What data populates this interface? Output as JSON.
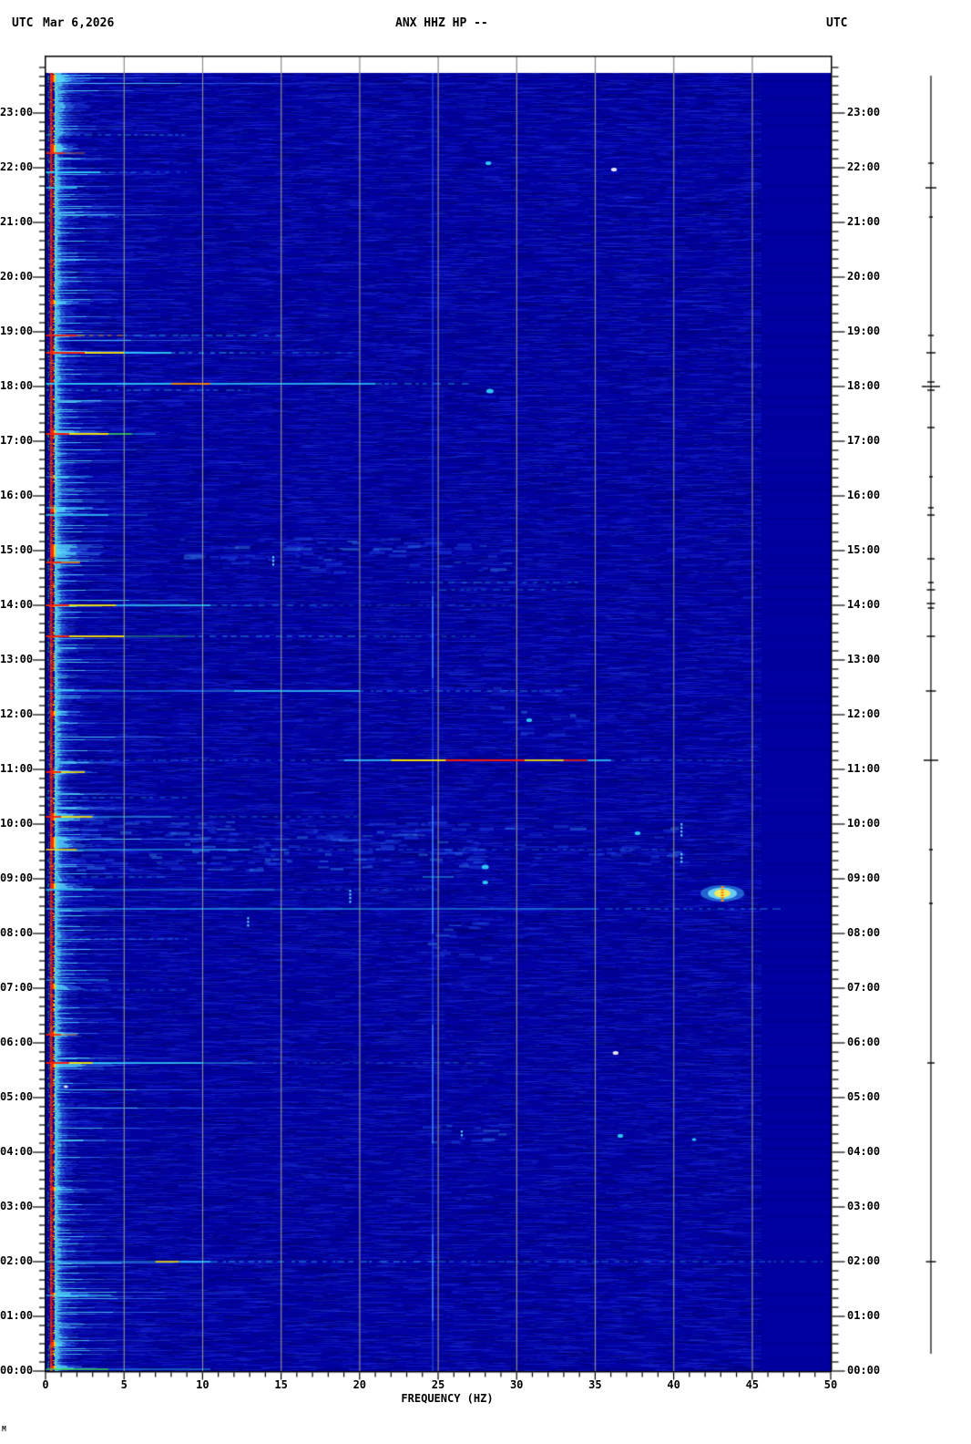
{
  "header": {
    "timezone_left": "UTC",
    "date": "Mar 6,2026",
    "timezone_right": "UTC"
  },
  "corner_mark": "M",
  "chart_data": {
    "type": "heatmap",
    "title": "ANX HHZ HP --",
    "subtitle": "24-hour seismic spectrogram, one row per time step, jet colormap on dark blue background",
    "xlabel": "FREQUENCY (HZ)",
    "x_range_hz": [
      0,
      50
    ],
    "x_tick_labels": [
      "0",
      "5",
      "10",
      "15",
      "20",
      "25",
      "30",
      "35",
      "40",
      "45",
      "50"
    ],
    "x_minor_step_hz": 1,
    "y_axis": "time UTC, 00:00 at bottom to 23:44 at top",
    "y_hour_labels": [
      "23:00",
      "22:00",
      "21:00",
      "20:00",
      "19:00",
      "18:00",
      "17:00",
      "16:00",
      "15:00",
      "14:00",
      "13:00",
      "12:00",
      "11:00",
      "10:00",
      "09:00",
      "08:00",
      "07:00",
      "06:00",
      "05:00",
      "04:00",
      "03:00",
      "02:00",
      "01:00",
      "00:00"
    ],
    "y_minor_step_min": 10,
    "grid": true,
    "grid_color": "#8c8c8c",
    "base_color": "#0202a8",
    "flat_region_above_hz": 45.6,
    "palette": {
      "red": "#ff1e00",
      "orange": "#ff9100",
      "yellow": "#ffe900",
      "green": "#3dde54",
      "cyan": "#35d8ff",
      "white": "#ffffff"
    },
    "persistent_tones_hz": [
      24.65
    ],
    "tone_bright_segments": [
      "14:10-12:40",
      "10:20-8:00",
      "6:20-4:10",
      "2:30-0:55"
    ],
    "events": [
      {
        "t": "22:36",
        "seg": [
          [
            0,
            9,
            "cyan",
            0.4,
            1
          ]
        ]
      },
      {
        "t": "22:16",
        "seg": [
          [
            0,
            1.2,
            "red",
            0.8
          ],
          [
            1.2,
            2.5,
            "orange",
            0.5
          ]
        ]
      },
      {
        "t": "21:55",
        "seg": [
          [
            0,
            3.5,
            "cyan",
            0.85
          ],
          [
            3.5,
            9,
            "cyan",
            0.3,
            1
          ]
        ]
      },
      {
        "t": "21:38",
        "seg": [
          [
            0,
            2,
            "cyan",
            0.75
          ]
        ]
      },
      {
        "t": "21:06",
        "seg": [
          [
            0,
            5,
            "cyan",
            0.3,
            1
          ]
        ]
      },
      {
        "t": "18:56",
        "seg": [
          [
            0,
            2,
            "red",
            0.85
          ],
          [
            2,
            5,
            "orange",
            0.6,
            1
          ],
          [
            5,
            15,
            "cyan",
            0.45,
            1
          ]
        ]
      },
      {
        "t": "18:37",
        "seg": [
          [
            0,
            2.5,
            "red",
            0.95
          ],
          [
            2.5,
            5,
            "yellow",
            0.9
          ],
          [
            5,
            8,
            "cyan",
            0.85
          ],
          [
            8,
            12.5,
            "cyan",
            0.55,
            1
          ],
          [
            12.5,
            20,
            "cyan",
            0.3,
            1
          ]
        ]
      },
      {
        "t": "18:03",
        "seg": [
          [
            0,
            8,
            "cyan",
            0.85
          ],
          [
            8,
            10.5,
            "orange",
            0.9
          ],
          [
            10.5,
            21,
            "cyan",
            0.75
          ],
          [
            21,
            27,
            "cyan",
            0.45,
            1
          ]
        ]
      },
      {
        "t": "17:56",
        "seg": [
          [
            0,
            13,
            "cyan",
            0.4,
            1
          ]
        ]
      },
      {
        "t": "17:08",
        "seg": [
          [
            0,
            1.5,
            "red",
            0.95
          ],
          [
            1.5,
            4,
            "yellow",
            0.95
          ],
          [
            4,
            5.5,
            "green",
            0.75
          ],
          [
            5.5,
            7,
            "cyan",
            0.45
          ]
        ]
      },
      {
        "t": "16:21",
        "seg": [
          [
            0,
            3,
            "cyan",
            0.5
          ]
        ]
      },
      {
        "t": "15:47",
        "seg": [
          [
            0,
            3,
            "cyan",
            0.65
          ]
        ]
      },
      {
        "t": "15:39",
        "seg": [
          [
            0,
            4,
            "cyan",
            0.75
          ],
          [
            4,
            6.5,
            "cyan",
            0.35
          ]
        ]
      },
      {
        "t": "14:47",
        "seg": [
          [
            0,
            1,
            "red",
            0.9
          ],
          [
            1,
            2.2,
            "orange",
            0.75
          ]
        ]
      },
      {
        "t": "14:25",
        "seg": [
          [
            23,
            34,
            "cyan",
            0.35,
            1
          ]
        ]
      },
      {
        "t": "14:17",
        "seg": [
          [
            25,
            33,
            "cyan",
            0.3,
            1
          ]
        ]
      },
      {
        "t": "14:00",
        "seg": [
          [
            0,
            1.5,
            "red",
            0.95
          ],
          [
            1.5,
            4.5,
            "yellow",
            0.9
          ],
          [
            4.5,
            10.5,
            "cyan",
            0.75
          ],
          [
            10.5,
            18,
            "cyan",
            0.4,
            1
          ],
          [
            18,
            30,
            "cyan",
            0.22,
            1
          ]
        ]
      },
      {
        "t": "13:26",
        "seg": [
          [
            0,
            1.5,
            "red",
            0.95
          ],
          [
            1.5,
            5,
            "yellow",
            0.9
          ],
          [
            5,
            9,
            "green",
            0.55
          ],
          [
            9,
            20,
            "cyan",
            0.45,
            1
          ],
          [
            20,
            27.5,
            "cyan",
            0.3,
            1
          ]
        ]
      },
      {
        "t": "12:26",
        "seg": [
          [
            0,
            12,
            "cyan",
            0.55
          ],
          [
            12,
            20,
            "cyan",
            0.75
          ],
          [
            20,
            33,
            "cyan",
            0.4,
            1
          ]
        ]
      },
      {
        "t": "11:10",
        "seg": [
          [
            0,
            19,
            "cyan",
            0.3,
            1
          ],
          [
            19,
            22,
            "cyan",
            0.75
          ],
          [
            22,
            25.5,
            "yellow",
            0.95
          ],
          [
            25.5,
            30.5,
            "red",
            0.95
          ],
          [
            30.5,
            33,
            "yellow",
            0.85
          ],
          [
            33,
            34.5,
            "red",
            0.8
          ],
          [
            34.5,
            36,
            "cyan",
            0.75
          ],
          [
            36,
            45,
            "cyan",
            0.25,
            1
          ]
        ]
      },
      {
        "t": "10:57",
        "seg": [
          [
            0,
            1,
            "red",
            0.9
          ],
          [
            1,
            2.5,
            "yellow",
            0.8
          ]
        ]
      },
      {
        "t": "10:29",
        "seg": [
          [
            0,
            9,
            "cyan",
            0.35,
            1
          ]
        ]
      },
      {
        "t": "10:08",
        "seg": [
          [
            0,
            1,
            "red",
            0.9
          ],
          [
            1,
            3,
            "yellow",
            0.85
          ],
          [
            3,
            8,
            "cyan",
            0.65
          ],
          [
            8,
            20,
            "cyan",
            0.3,
            1
          ]
        ]
      },
      {
        "t": "9:32",
        "seg": [
          [
            0,
            2,
            "yellow",
            0.75
          ],
          [
            2,
            13,
            "cyan",
            0.65
          ],
          [
            13,
            40,
            "cyan",
            0.25,
            1
          ]
        ]
      },
      {
        "t": "9:02",
        "seg": [
          [
            0,
            8,
            "cyan",
            0.35,
            1
          ],
          [
            24,
            26,
            "cyan",
            0.55
          ]
        ]
      },
      {
        "t": "8:48",
        "seg": [
          [
            0,
            3,
            "cyan",
            0.75
          ],
          [
            3,
            14.6,
            "cyan",
            0.55
          ],
          [
            14.6,
            25,
            "cyan",
            0.25,
            1
          ]
        ]
      },
      {
        "t": "8:27",
        "seg": [
          [
            0,
            20,
            "cyan",
            0.7
          ],
          [
            20,
            35,
            "cyan",
            0.55
          ],
          [
            35,
            47,
            "cyan",
            0.4,
            1
          ]
        ]
      },
      {
        "t": "7:54",
        "seg": [
          [
            0,
            9,
            "cyan",
            0.3,
            1
          ]
        ]
      },
      {
        "t": "7:09",
        "seg": [
          [
            0,
            4,
            "cyan",
            0.55
          ]
        ]
      },
      {
        "t": "6:58",
        "seg": [
          [
            0,
            9,
            "cyan",
            0.25,
            1
          ]
        ]
      },
      {
        "t": "6:09",
        "seg": [
          [
            0,
            1,
            "red",
            0.85
          ],
          [
            1,
            2,
            "orange",
            0.6
          ]
        ]
      },
      {
        "t": "5:38",
        "seg": [
          [
            0,
            1.5,
            "red",
            0.95
          ],
          [
            1.5,
            3,
            "yellow",
            0.9
          ],
          [
            3,
            10,
            "cyan",
            0.75
          ],
          [
            10,
            13.2,
            "cyan",
            0.5
          ],
          [
            13.2,
            28,
            "cyan",
            0.25,
            1
          ]
        ]
      },
      {
        "t": "2:00",
        "seg": [
          [
            0,
            7,
            "cyan",
            0.55
          ],
          [
            7,
            8.5,
            "yellow",
            0.8
          ],
          [
            8.5,
            10.5,
            "cyan",
            0.75
          ],
          [
            10.5,
            25,
            "cyan",
            0.5,
            1
          ],
          [
            25,
            49.5,
            "cyan",
            0.35,
            1
          ]
        ]
      },
      {
        "t": "1:23",
        "seg": [
          [
            0,
            4.2,
            "cyan",
            0.7
          ]
        ]
      },
      {
        "t": "0:02",
        "seg": [
          [
            0,
            4,
            "green",
            0.75
          ],
          [
            4,
            10.5,
            "cyan",
            0.55
          ]
        ]
      }
    ],
    "spots": [
      {
        "t": "22:05",
        "f": 28.2,
        "r": 2,
        "c": "cyan"
      },
      {
        "t": "21:58",
        "f": 36.2,
        "r": 2,
        "c": "white"
      },
      {
        "t": "17:55",
        "f": 28.3,
        "r": 2.5,
        "c": "cyan"
      },
      {
        "t": "11:54",
        "f": 30.8,
        "r": 2,
        "c": "cyan"
      },
      {
        "t": "9:50",
        "f": 37.7,
        "r": 2,
        "c": "cyan"
      },
      {
        "t": "9:13",
        "f": 28,
        "r": 2.5,
        "c": "cyan"
      },
      {
        "t": "8:56",
        "f": 28,
        "r": 2,
        "c": "cyan"
      },
      {
        "t": "5:49",
        "f": 36.3,
        "r": 2,
        "c": "white"
      },
      {
        "t": "5:12",
        "f": 1.3,
        "r": 1.5,
        "c": "white"
      },
      {
        "t": "4:18",
        "f": 36.6,
        "r": 2,
        "c": "cyan"
      },
      {
        "t": "4:14",
        "f": 41.3,
        "r": 1.5,
        "c": "cyan"
      }
    ],
    "vdashes": [
      {
        "t": "14:49",
        "f": 14.5,
        "len": 10
      },
      {
        "t": "9:54",
        "f": 40.5,
        "len": 14
      },
      {
        "t": "9:23",
        "f": 40.5,
        "len": 10
      },
      {
        "t": "8:40",
        "f": 19.4,
        "len": 16
      },
      {
        "t": "8:12",
        "f": 12.9,
        "len": 12
      },
      {
        "t": "4:20",
        "f": 26.5,
        "len": 8
      }
    ],
    "blob": {
      "t": "8:44",
      "f": 43.1,
      "note": "bright localized burst, red core, yellow ring, cyan halo"
    },
    "mottle_bands": [
      {
        "t0": "15:15",
        "t1": "14:38",
        "f0": 8,
        "f1": 30,
        "n": 70
      },
      {
        "t0": "12:40",
        "t1": "11:35",
        "f0": 28,
        "f1": 34,
        "n": 14
      },
      {
        "t0": "10:05",
        "t1": "9:10",
        "f0": 1,
        "f1": 28,
        "n": 170
      },
      {
        "t0": "10:00",
        "t1": "9:15",
        "f0": 29,
        "f1": 40,
        "n": 25
      },
      {
        "t0": "8:20",
        "t1": "7:30",
        "f0": 24,
        "f1": 28,
        "n": 14
      },
      {
        "t0": "4:45",
        "t1": "4:05",
        "f0": 24,
        "f1": 29,
        "n": 12
      }
    ],
    "left_bursts": [
      {
        "t": "23:38",
        "rows": 8,
        "len": 25
      },
      {
        "t": "22:20",
        "rows": 10,
        "len": 18
      },
      {
        "t": "19:32",
        "rows": 4,
        "len": 30
      },
      {
        "t": "18:38",
        "rows": 3,
        "len": 60
      },
      {
        "t": "17:10",
        "rows": 4,
        "len": 40
      },
      {
        "t": "16:21",
        "rows": 3,
        "len": 25
      },
      {
        "t": "15:45",
        "rows": 6,
        "len": 30
      },
      {
        "t": "15:00",
        "rows": 14,
        "len": 35
      },
      {
        "t": "14:00",
        "rows": 3,
        "len": 45
      },
      {
        "t": "12:02",
        "rows": 5,
        "len": 20
      },
      {
        "t": "10:57",
        "rows": 4,
        "len": 30
      },
      {
        "t": "10:08",
        "rows": 8,
        "len": 40
      },
      {
        "t": "9:40",
        "rows": 12,
        "len": 30
      },
      {
        "t": "8:52",
        "rows": 6,
        "len": 30
      },
      {
        "t": "7:02",
        "rows": 5,
        "len": 25
      },
      {
        "t": "6:10",
        "rows": 5,
        "len": 20
      },
      {
        "t": "5:36",
        "rows": 6,
        "len": 50
      },
      {
        "t": "3:20",
        "rows": 4,
        "len": 18
      },
      {
        "t": "1:24",
        "rows": 4,
        "len": 25
      },
      {
        "t": "0:30",
        "rows": 5,
        "len": 20
      },
      {
        "t": "0:04",
        "rows": 4,
        "len": 40
      }
    ],
    "trace_blips": [
      {
        "t": "22:05",
        "w": 6
      },
      {
        "t": "21:38",
        "w": 12
      },
      {
        "t": "21:06",
        "w": 4
      },
      {
        "t": "18:56",
        "w": 6
      },
      {
        "t": "18:37",
        "w": 10
      },
      {
        "t": "18:05",
        "w": 8
      },
      {
        "t": "18:00",
        "w": 20
      },
      {
        "t": "17:56",
        "w": 8
      },
      {
        "t": "17:15",
        "w": 8
      },
      {
        "t": "16:21",
        "w": 4
      },
      {
        "t": "15:47",
        "w": 6
      },
      {
        "t": "15:39",
        "w": 8
      },
      {
        "t": "14:51",
        "w": 8
      },
      {
        "t": "14:25",
        "w": 6
      },
      {
        "t": "14:17",
        "w": 9
      },
      {
        "t": "14:02",
        "w": 9
      },
      {
        "t": "13:57",
        "w": 7
      },
      {
        "t": "13:26",
        "w": 9
      },
      {
        "t": "12:26",
        "w": 11
      },
      {
        "t": "11:10",
        "w": 16
      },
      {
        "t": "9:32",
        "w": 4
      },
      {
        "t": "8:33",
        "w": 4
      },
      {
        "t": "5:38",
        "w": 8
      },
      {
        "t": "2:00",
        "w": 11
      }
    ]
  }
}
